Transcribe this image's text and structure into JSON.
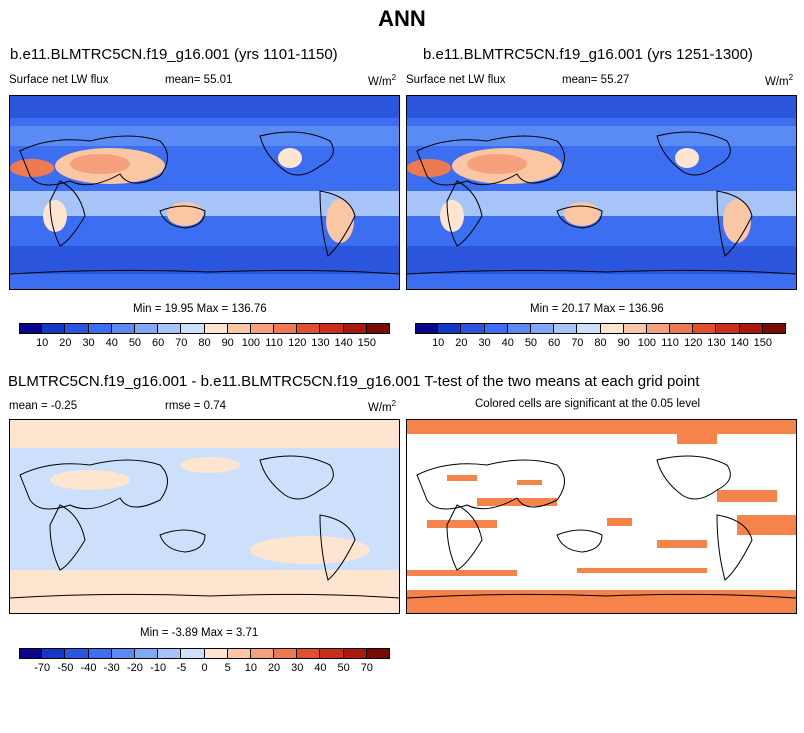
{
  "figure": {
    "title": "ANN"
  },
  "panel_left": {
    "case_title": "b.e11.BLMTRC5CN.f19_g16.001 (yrs 1101-1150)",
    "variable": "Surface net LW flux",
    "mean_text": "mean=  55.01",
    "units": "W/m",
    "units_exp": "2",
    "minmax": "Min =  19.95 Max = 136.76"
  },
  "panel_right": {
    "case_title": "b.e11.BLMTRC5CN.f19_g16.001 (yrs 1251-1300)",
    "variable": "Surface net LW flux",
    "mean_text": "mean=  55.27",
    "units": "W/m",
    "units_exp": "2",
    "minmax": "Min =  20.17 Max = 136.96"
  },
  "diff_header": "BLMTRC5CN.f19_g16.001 - b.e11.BLMTRC5CN.f19_g16.001 T-test of the two means at each grid point",
  "panel_diff": {
    "mean_text": "mean =  -0.25",
    "rmse_text": "rmse =   0.74",
    "units": "W/m",
    "units_exp": "2",
    "minmax": "Min =  -3.89 Max =   3.71"
  },
  "panel_ttest": {
    "subtitle": "Colored cells are significant at the 0.05 level"
  },
  "colorbar_abs": {
    "labels": [
      "10",
      "20",
      "30",
      "40",
      "50",
      "60",
      "70",
      "80",
      "90",
      "100",
      "110",
      "120",
      "130",
      "140",
      "150"
    ],
    "colors": [
      "#08068a",
      "#1338c4",
      "#2a55dc",
      "#3b6ef0",
      "#5a8af4",
      "#7fa8f6",
      "#a6c4f8",
      "#cde0fb",
      "#fde5cf",
      "#fbc6a4",
      "#f6a07c",
      "#ee7a52",
      "#e0502e",
      "#c8301a",
      "#a81a0e",
      "#7a0a04"
    ]
  },
  "colorbar_diff": {
    "labels": [
      "-70",
      "-50",
      "-40",
      "-30",
      "-20",
      "-10",
      "-5",
      "0",
      "5",
      "10",
      "20",
      "30",
      "40",
      "50",
      "70"
    ],
    "colors": [
      "#08068a",
      "#1338c4",
      "#2a55dc",
      "#3b6ef0",
      "#5a8af4",
      "#7fa8f6",
      "#a6c4f8",
      "#cde0fb",
      "#fde5cf",
      "#fbc6a4",
      "#f6a07c",
      "#ee7a52",
      "#e0502e",
      "#c8301a",
      "#a81a0e",
      "#7a0a04"
    ]
  },
  "chart_data": [
    {
      "type": "heatmap",
      "title": "b.e11.BLMTRC5CN.f19_g16.001 (yrs 1101-1150)",
      "variable": "Surface net LW flux",
      "units": "W/m2",
      "mean": 55.01,
      "min": 19.95,
      "max": 136.76,
      "contour_levels": [
        10,
        20,
        30,
        40,
        50,
        60,
        70,
        80,
        90,
        100,
        110,
        120,
        130,
        140,
        150
      ]
    },
    {
      "type": "heatmap",
      "title": "b.e11.BLMTRC5CN.f19_g16.001 (yrs 1251-1300)",
      "variable": "Surface net LW flux",
      "units": "W/m2",
      "mean": 55.27,
      "min": 20.17,
      "max": 136.96,
      "contour_levels": [
        10,
        20,
        30,
        40,
        50,
        60,
        70,
        80,
        90,
        100,
        110,
        120,
        130,
        140,
        150
      ]
    },
    {
      "type": "heatmap",
      "title": "BLMTRC5CN.f19_g16.001 - b.e11.BLMTRC5CN.f19_g16.001",
      "units": "W/m2",
      "mean": -0.25,
      "rmse": 0.74,
      "min": -3.89,
      "max": 3.71,
      "contour_levels": [
        -70,
        -50,
        -40,
        -30,
        -20,
        -10,
        -5,
        0,
        5,
        10,
        20,
        30,
        40,
        50,
        70
      ]
    },
    {
      "type": "heatmap",
      "title": "T-test of the two means at each grid point",
      "subtitle": "Colored cells are significant at the 0.05 level",
      "significance_level": 0.05
    }
  ]
}
